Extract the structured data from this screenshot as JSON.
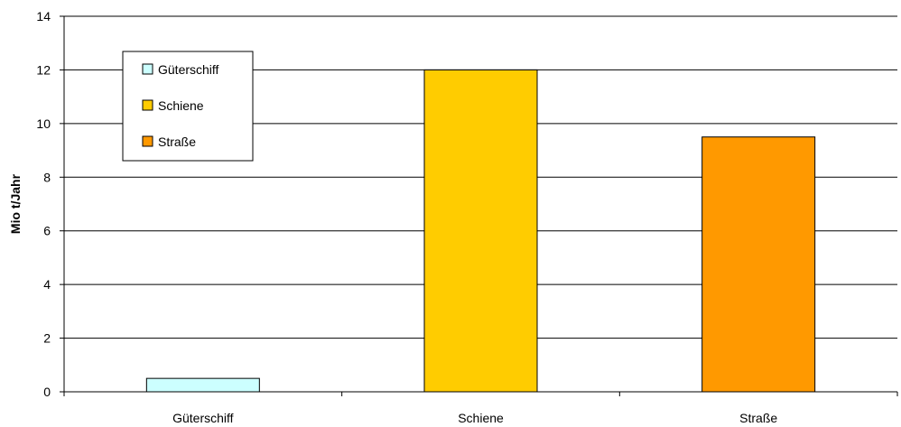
{
  "chart_data": {
    "type": "bar",
    "categories": [
      "Güterschiff",
      "Schiene",
      "Straße"
    ],
    "values": [
      0.5,
      12,
      9.5
    ],
    "colors": [
      "#ccffff",
      "#ffcc00",
      "#ff9900"
    ],
    "title": "",
    "xlabel": "",
    "ylabel": "Mio t/Jahr",
    "ylim": [
      0,
      14
    ],
    "yticks": [
      0,
      2,
      4,
      6,
      8,
      10,
      12,
      14
    ],
    "grid": true,
    "legend": {
      "position": "top-left",
      "entries": [
        "Güterschiff",
        "Schiene",
        "Straße"
      ]
    }
  }
}
